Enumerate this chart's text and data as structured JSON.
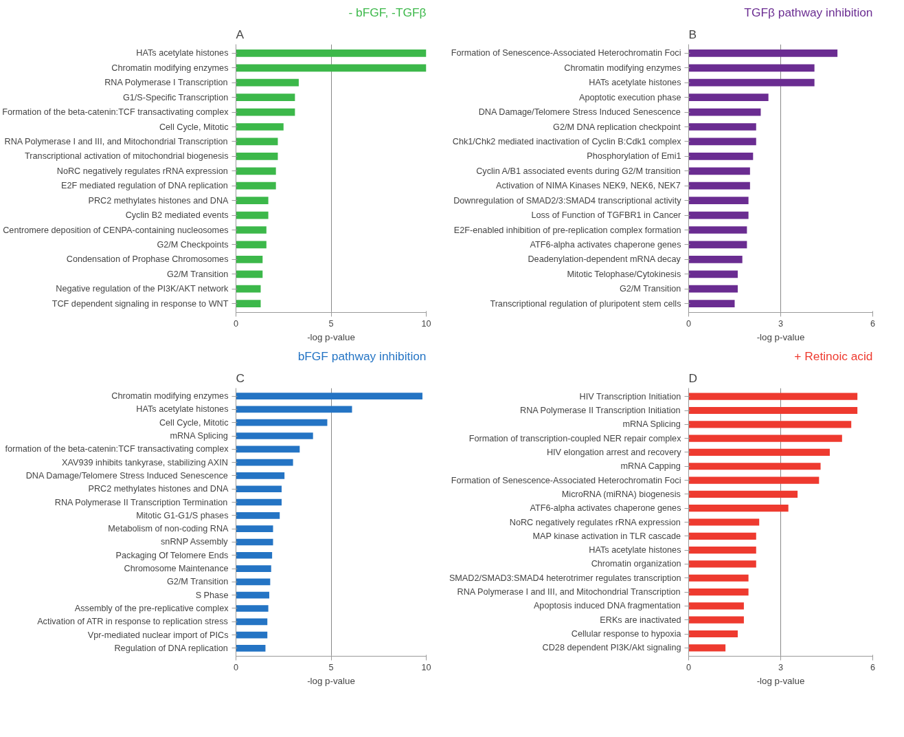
{
  "chart_data": [
    {
      "type": "bar",
      "orientation": "horizontal",
      "title": "- bFGF, -TGFβ",
      "annotations": [
        "A"
      ],
      "xlabel": "-log p-value",
      "color": "#3cb84a",
      "xlim": [
        0,
        10
      ],
      "xticks": [
        0,
        5,
        10
      ],
      "grid": "x",
      "categories": [
        "HATs acetylate histones",
        "Chromatin modifying enzymes",
        "RNA Polymerase I Transcription",
        "G1/S-Specific Transcription",
        "Formation of the beta-catenin:TCF transactivating complex",
        "Cell Cycle, Mitotic",
        "RNA Polymerase I and III, and Mitochondrial Transcription",
        "Transcriptional activation of mitochondrial biogenesis",
        "NoRC negatively regulates rRNA expression",
        "E2F mediated regulation of DNA replication",
        "PRC2 methylates histones and DNA",
        "Cyclin B2 mediated events",
        "Centromere deposition of CENPA-containing nucleosomes",
        "G2/M Checkpoints",
        "Condensation of Prophase Chromosomes",
        "G2/M Transition",
        "Negative regulation of the PI3K/AKT network",
        "TCF dependent signaling in response to WNT"
      ],
      "values": [
        10,
        10,
        3.3,
        3.1,
        3.1,
        2.5,
        2.2,
        2.2,
        2.1,
        2.1,
        1.7,
        1.7,
        1.6,
        1.6,
        1.4,
        1.4,
        1.3,
        1.3
      ]
    },
    {
      "type": "bar",
      "orientation": "horizontal",
      "title": "TGFβ pathway inhibition",
      "annotations": [
        "B"
      ],
      "xlabel": "-log p-value",
      "color": "#6a2c91",
      "xlim": [
        0,
        6
      ],
      "xticks": [
        0,
        3,
        6
      ],
      "grid": "x",
      "categories": [
        "Formation of Senescence-Associated Heterochromatin Foci",
        "Chromatin modifying enzymes",
        "HATs acetylate histones",
        "Apoptotic execution phase",
        "DNA Damage/Telomere Stress Induced Senescence",
        "G2/M DNA replication checkpoint",
        "Chk1/Chk2 mediated inactivation of Cyclin B:Cdk1 complex",
        "Phosphorylation of Emi1",
        "Cyclin A/B1 associated events during G2/M transition",
        "Activation of NIMA Kinases NEK9, NEK6, NEK7",
        "Downregulation of SMAD2/3:SMAD4 transcriptional activity",
        "Loss of Function of TGFBR1 in Cancer",
        "E2F-enabled inhibition of pre-replication complex formation",
        "ATF6-alpha activates chaperone genes",
        "Deadenylation-dependent mRNA decay",
        "Mitotic Telophase/Cytokinesis",
        "G2/M Transition",
        "Transcriptional regulation of pluripotent stem cells"
      ],
      "values": [
        4.85,
        4.1,
        4.1,
        2.6,
        2.35,
        2.2,
        2.2,
        2.1,
        2.0,
        2.0,
        1.95,
        1.95,
        1.9,
        1.9,
        1.75,
        1.6,
        1.6,
        1.5
      ]
    },
    {
      "type": "bar",
      "orientation": "horizontal",
      "title": "bFGF pathway inhibition",
      "annotations": [
        "C"
      ],
      "xlabel": "-log p-value",
      "color": "#2474c4",
      "xlim": [
        0,
        10
      ],
      "xticks": [
        0,
        5,
        10
      ],
      "grid": "x",
      "categories": [
        "Chromatin modifying enzymes",
        "HATs acetylate histones",
        "Cell Cycle, Mitotic",
        "mRNA Splicing",
        "formation of the beta-catenin:TCF transactivating complex",
        "XAV939 inhibits tankyrase, stabilizing AXIN",
        "DNA Damage/Telomere Stress Induced Senescence",
        "PRC2 methylates histones and DNA",
        "RNA Polymerase II Transcription Termination",
        "Mitotic G1-G1/S phases",
        "Metabolism of non-coding RNA",
        "snRNP Assembly",
        "Packaging Of Telomere Ends",
        "Chromosome Maintenance",
        "G2/M Transition",
        "S Phase",
        "Assembly of the pre-replicative complex",
        "Activation of ATR in response to replication stress",
        "Vpr-mediated nuclear import of PICs",
        "Regulation of DNA replication"
      ],
      "values": [
        9.8,
        6.1,
        4.8,
        4.05,
        3.35,
        3.0,
        2.55,
        2.4,
        2.4,
        2.3,
        1.95,
        1.95,
        1.9,
        1.85,
        1.8,
        1.75,
        1.7,
        1.65,
        1.65,
        1.55
      ]
    },
    {
      "type": "bar",
      "orientation": "horizontal",
      "title": "+ Retinoic acid",
      "annotations": [
        "D"
      ],
      "xlabel": "-log p-value",
      "color": "#ee3a2f",
      "xlim": [
        0,
        6
      ],
      "xticks": [
        0,
        3,
        6
      ],
      "grid": "x",
      "categories": [
        "HIV Transcription Initiation",
        "RNA Polymerase II Transcription Initiation",
        "mRNA Splicing",
        "Formation of transcription-coupled NER repair complex",
        "HIV elongation arrest and recovery",
        "mRNA Capping",
        "Formation of Senescence-Associated Heterochromatin Foci",
        "MicroRNA (miRNA) biogenesis",
        "ATF6-alpha activates chaperone genes",
        "NoRC negatively regulates rRNA expression",
        "MAP kinase activation in TLR cascade",
        "HATs acetylate histones",
        "Chromatin organization",
        "SMAD2/SMAD3:SMAD4 heterotrimer regulates transcription",
        "RNA Polymerase I and III, and Mitochondrial Transcription",
        "Apoptosis induced DNA fragmentation",
        "ERKs are inactivated",
        "Cellular response to hypoxia",
        "CD28 dependent PI3K/Akt signaling"
      ],
      "values": [
        5.5,
        5.5,
        5.3,
        5.0,
        4.6,
        4.3,
        4.25,
        3.55,
        3.25,
        2.3,
        2.2,
        2.2,
        2.2,
        1.95,
        1.95,
        1.8,
        1.8,
        1.6,
        1.2
      ]
    }
  ]
}
